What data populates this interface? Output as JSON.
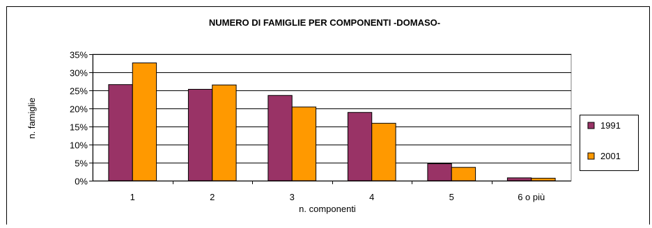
{
  "chart_data": {
    "type": "bar",
    "title": "NUMERO DI FAMIGLIE PER COMPONENTI -DOMASO-",
    "xlabel": "n. componenti",
    "ylabel": "n. famiglie",
    "categories": [
      "1",
      "2",
      "3",
      "4",
      "5",
      "6 o più"
    ],
    "series": [
      {
        "name": "1991",
        "color": "#993366",
        "values": [
          26.6,
          25.3,
          23.6,
          18.9,
          4.7,
          0.8
        ]
      },
      {
        "name": "2001",
        "color": "#FF9900",
        "values": [
          32.6,
          26.5,
          20.4,
          15.9,
          3.7,
          0.7
        ]
      }
    ],
    "ylim": [
      0,
      35
    ],
    "y_ticks": [
      "0%",
      "5%",
      "10%",
      "15%",
      "20%",
      "25%",
      "30%",
      "35%"
    ],
    "grid": true,
    "legend_position": "right"
  }
}
